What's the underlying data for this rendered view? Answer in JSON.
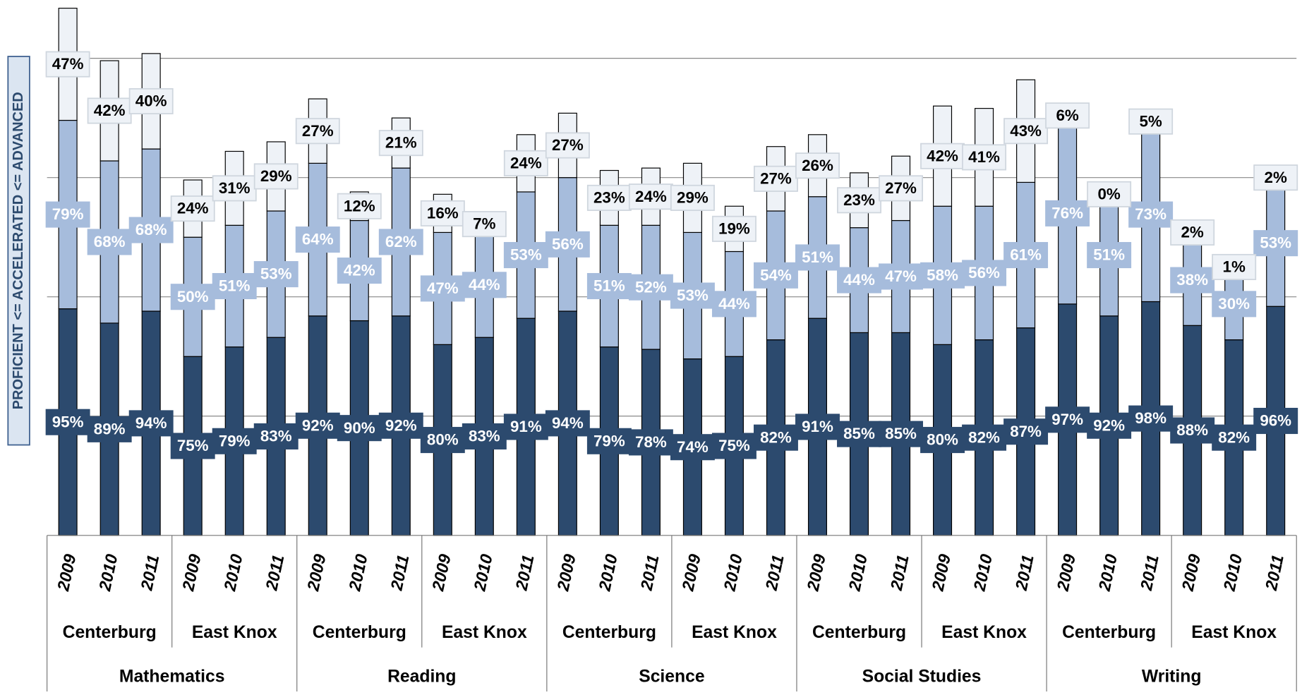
{
  "chart_data": {
    "type": "stacked_bar",
    "y_axis_label": "PROFICIENT <= ACCELERATED <= ADVANCED",
    "categories": [
      "2009",
      "2010",
      "2011",
      "2009",
      "2010",
      "2011",
      "2009",
      "2010",
      "2011",
      "2009",
      "2010",
      "2011",
      "2009",
      "2010",
      "2011",
      "2009",
      "2010",
      "2011",
      "2009",
      "2010",
      "2011",
      "2009",
      "2010",
      "2011",
      "2009",
      "2010",
      "2011",
      "2009",
      "2010",
      "2011"
    ],
    "districts": [
      "Centerburg",
      "East Knox",
      "Centerburg",
      "East Knox",
      "Centerburg",
      "East Knox",
      "Centerburg",
      "East Knox",
      "Centerburg",
      "East Knox"
    ],
    "subjects": [
      "Mathematics",
      "Reading",
      "Science",
      "Social Studies",
      "Writing"
    ],
    "ylim": [
      0,
      222
    ],
    "yticks": [
      50,
      100,
      150,
      200
    ],
    "grid": true,
    "series": [
      {
        "color": "#2c4a6e",
        "label_color": "#ffffff",
        "values": [
          95,
          89,
          94,
          75,
          79,
          83,
          92,
          90,
          92,
          80,
          83,
          91,
          94,
          79,
          78,
          74,
          75,
          82,
          91,
          85,
          85,
          80,
          82,
          87,
          97,
          92,
          98,
          88,
          82,
          96
        ],
        "value_labels": [
          "95%",
          "89%",
          "94%",
          "75%",
          "79%",
          "83%",
          "92%",
          "90%",
          "92%",
          "80%",
          "83%",
          "91%",
          "94%",
          "79%",
          "78%",
          "74%",
          "75%",
          "82%",
          "91%",
          "85%",
          "85%",
          "80%",
          "82%",
          "87%",
          "97%",
          "92%",
          "98%",
          "88%",
          "82%",
          "96%"
        ]
      },
      {
        "color": "#a6bcdc",
        "label_color": "#ffffff",
        "values": [
          79,
          68,
          68,
          50,
          51,
          53,
          64,
          42,
          62,
          47,
          44,
          53,
          56,
          51,
          52,
          53,
          44,
          54,
          51,
          44,
          47,
          58,
          56,
          61,
          76,
          51,
          73,
          38,
          30,
          53
        ],
        "value_labels": [
          "79%",
          "68%",
          "68%",
          "50%",
          "51%",
          "53%",
          "64%",
          "42%",
          "62%",
          "47%",
          "44%",
          "53%",
          "56%",
          "51%",
          "52%",
          "53%",
          "44%",
          "54%",
          "51%",
          "44%",
          "47%",
          "58%",
          "56%",
          "61%",
          "76%",
          "51%",
          "73%",
          "38%",
          "30%",
          "53%"
        ]
      },
      {
        "color": "#eef2f7",
        "label_color": "#000000",
        "values": [
          47,
          42,
          40,
          24,
          31,
          29,
          27,
          12,
          21,
          16,
          7,
          24,
          27,
          23,
          24,
          29,
          19,
          27,
          26,
          23,
          27,
          42,
          41,
          43,
          6,
          0,
          5,
          2,
          1,
          2
        ],
        "value_labels": [
          "47%",
          "42%",
          "40%",
          "24%",
          "31%",
          "29%",
          "27%",
          "12%",
          "21%",
          "16%",
          "7%",
          "24%",
          "27%",
          "23%",
          "24%",
          "29%",
          "19%",
          "27%",
          "26%",
          "23%",
          "27%",
          "42%",
          "41%",
          "43%",
          "6%",
          "0%",
          "5%",
          "2%",
          "1%",
          "2%"
        ]
      }
    ]
  }
}
